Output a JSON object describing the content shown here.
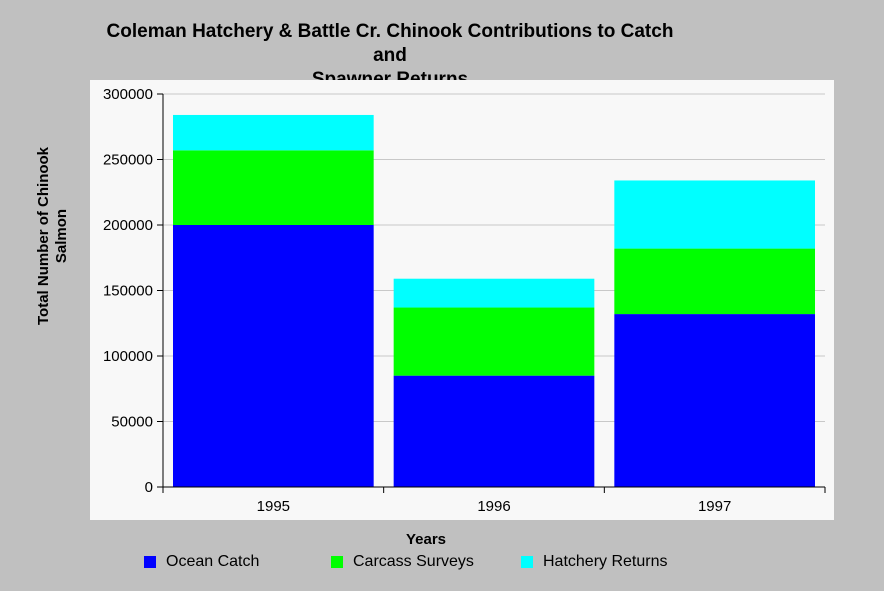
{
  "chart_data": {
    "type": "bar",
    "stacked": true,
    "title_line1": "Coleman Hatchery & Battle Cr. Chinook Contributions to Catch and",
    "title_line2": "Spawner Returns",
    "xlabel": "Years",
    "ylabel_line1": "Total Number of Chinook",
    "ylabel_line2": "Salmon",
    "categories": [
      "1995",
      "1996",
      "1997"
    ],
    "ylim": [
      0,
      300000
    ],
    "yticks": [
      "0",
      "50000",
      "100000",
      "150000",
      "200000",
      "250000",
      "300000"
    ],
    "grid": true,
    "legend_position": "bottom",
    "series": [
      {
        "name": "Ocean Catch",
        "color": "#0000ff",
        "values": [
          200000,
          85000,
          132000
        ]
      },
      {
        "name": "Carcass Surveys",
        "color": "#00ff00",
        "values": [
          57000,
          52000,
          50000
        ]
      },
      {
        "name": "Hatchery Returns",
        "color": "#00ffff",
        "values": [
          27000,
          22000,
          52000
        ]
      }
    ]
  }
}
